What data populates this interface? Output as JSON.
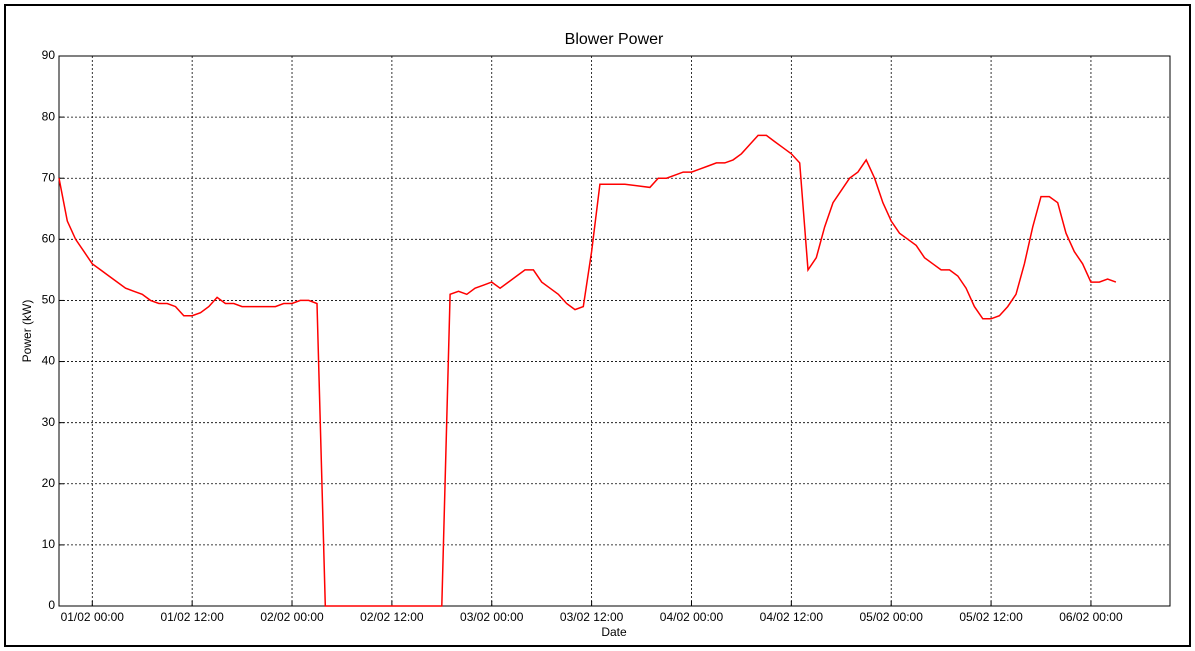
{
  "chart_data": {
    "type": "line",
    "title": "Blower Power",
    "xlabel": "Date",
    "ylabel": "Power (kW)",
    "x": [
      "31/01 20:00",
      "31/01 21:00",
      "31/01 22:00",
      "31/01 23:00",
      "01/02 00:00",
      "01/02 01:00",
      "01/02 02:00",
      "01/02 03:00",
      "01/02 04:00",
      "01/02 05:00",
      "01/02 06:00",
      "01/02 07:00",
      "01/02 08:00",
      "01/02 09:00",
      "01/02 10:00",
      "01/02 11:00",
      "01/02 12:00",
      "01/02 13:00",
      "01/02 14:00",
      "01/02 15:00",
      "01/02 16:00",
      "01/02 17:00",
      "01/02 18:00",
      "01/02 19:00",
      "01/02 20:00",
      "01/02 21:00",
      "01/02 22:00",
      "01/02 23:00",
      "02/02 00:00",
      "02/02 01:00",
      "02/02 02:00",
      "02/02 03:00",
      "02/02 04:00",
      "02/02 18:00",
      "02/02 19:00",
      "02/02 20:00",
      "02/02 21:00",
      "02/02 22:00",
      "02/02 23:00",
      "03/02 00:00",
      "03/02 01:00",
      "03/02 02:00",
      "03/02 03:00",
      "03/02 04:00",
      "03/02 05:00",
      "03/02 06:00",
      "03/02 07:00",
      "03/02 08:00",
      "03/02 09:00",
      "03/02 10:00",
      "03/02 11:00",
      "03/02 12:00",
      "03/02 13:00",
      "03/02 16:00",
      "03/02 19:00",
      "03/02 20:00",
      "03/02 21:00",
      "03/02 22:00",
      "03/02 23:00",
      "04/02 00:00",
      "04/02 01:00",
      "04/02 02:00",
      "04/02 03:00",
      "04/02 04:00",
      "04/02 05:00",
      "04/02 06:00",
      "04/02 07:00",
      "04/02 08:00",
      "04/02 09:00",
      "04/02 10:00",
      "04/02 11:00",
      "04/02 12:00",
      "04/02 13:00",
      "04/02 14:00",
      "04/02 15:00",
      "04/02 16:00",
      "04/02 17:00",
      "04/02 18:00",
      "04/02 19:00",
      "04/02 20:00",
      "04/02 21:00",
      "04/02 22:00",
      "04/02 23:00",
      "05/02 00:00",
      "05/02 01:00",
      "05/02 02:00",
      "05/02 03:00",
      "05/02 04:00",
      "05/02 05:00",
      "05/02 06:00",
      "05/02 07:00",
      "05/02 08:00",
      "05/02 09:00",
      "05/02 10:00",
      "05/02 11:00",
      "05/02 12:00",
      "05/02 13:00",
      "05/02 14:00",
      "05/02 15:00",
      "05/02 16:00",
      "05/02 17:00",
      "05/02 18:00",
      "05/02 19:00",
      "05/02 20:00",
      "05/02 21:00",
      "05/02 22:00",
      "05/02 23:00",
      "06/02 00:00",
      "06/02 01:00",
      "06/02 02:00",
      "06/02 03:00"
    ],
    "series": [
      {
        "name": "Power",
        "color": "#ff0000",
        "values": [
          70,
          63,
          60,
          58,
          56,
          55,
          54,
          53,
          52,
          51.5,
          51,
          50,
          49.5,
          49.5,
          49,
          47.5,
          47.5,
          48,
          49,
          50.5,
          49.5,
          49.5,
          49,
          49,
          49,
          49,
          49,
          49.5,
          49.5,
          50,
          50,
          49.5,
          0,
          0,
          51,
          51.5,
          51,
          52,
          52.5,
          53,
          52,
          53,
          54,
          55,
          55,
          53,
          52,
          51,
          49.5,
          48.5,
          49,
          58,
          69,
          69,
          68.5,
          70,
          70,
          70.5,
          71,
          71,
          71.5,
          72,
          72.5,
          72.5,
          73,
          74,
          75.5,
          77,
          77,
          76,
          75,
          74,
          72.5,
          55,
          57,
          62,
          66,
          68,
          70,
          71,
          73,
          70,
          66,
          63,
          61,
          60,
          59,
          57,
          56,
          55,
          55,
          54,
          52,
          49,
          47,
          47,
          47.5,
          49,
          51,
          56,
          62,
          67,
          67,
          66,
          61,
          58,
          56,
          53,
          53,
          53.5,
          53
        ]
      }
    ],
    "xlim": [
      "31/01 20:00",
      "06/02 09:30"
    ],
    "xticks": [
      "01/02 00:00",
      "01/02 12:00",
      "02/02 00:00",
      "02/02 12:00",
      "03/02 00:00",
      "03/02 12:00",
      "04/02 00:00",
      "04/02 12:00",
      "05/02 00:00",
      "05/02 12:00",
      "06/02 00:00"
    ],
    "ylim": [
      0,
      90
    ],
    "yticks": [
      0,
      10,
      20,
      30,
      40,
      50,
      60,
      70,
      80,
      90
    ],
    "grid": true
  }
}
